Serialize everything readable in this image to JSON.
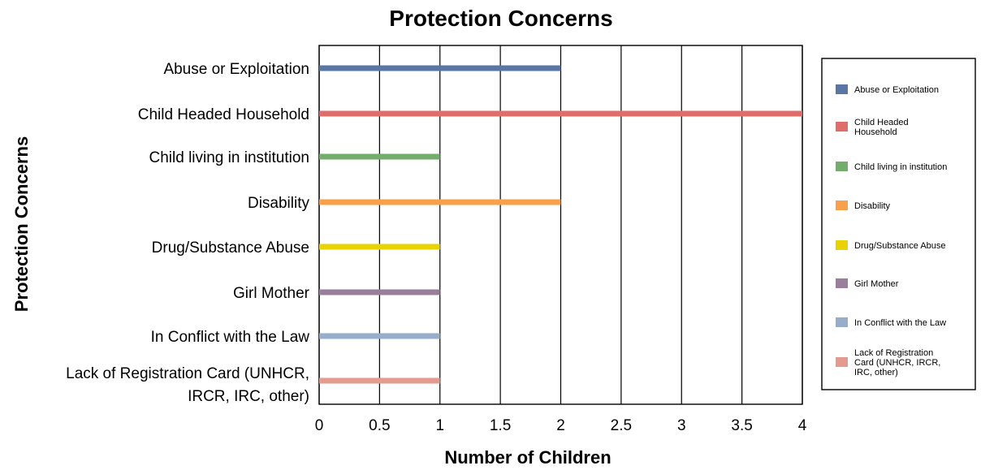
{
  "chart_data": {
    "type": "bar",
    "orientation": "horizontal",
    "title": "Protection Concerns",
    "xlabel": "Number of Children",
    "ylabel": "Protection Concerns",
    "categories": [
      "Abuse or Exploitation",
      "Child Headed Household",
      "Child living in institution",
      "Disability",
      "Drug/Substance Abuse",
      "Girl Mother",
      "In Conflict with the Law",
      "Lack of Registration Card (UNHCR, IRCR, IRC, other)"
    ],
    "category_label_lines": [
      [
        "Abuse or Exploitation"
      ],
      [
        "Child Headed Household"
      ],
      [
        "Child living in institution"
      ],
      [
        "Disability"
      ],
      [
        "Drug/Substance Abuse"
      ],
      [
        "Girl Mother"
      ],
      [
        "In Conflict with the Law"
      ],
      [
        "Lack of Registration Card (UNHCR,",
        "IRCR, IRC, other)"
      ]
    ],
    "values": [
      2,
      4,
      1,
      2,
      1,
      1,
      1,
      1
    ],
    "colors": [
      "#5a77a3",
      "#df6e6b",
      "#72ad6b",
      "#f8a04a",
      "#e8d300",
      "#9a7f9d",
      "#97aecb",
      "#e39a8f"
    ],
    "xlim": [
      0,
      4
    ],
    "ticks": [
      "0",
      "0.5",
      "1",
      "1.5",
      "2",
      "2.5",
      "3",
      "3.5",
      "4"
    ],
    "grid": true,
    "legend": {
      "position": "right",
      "entries": [
        [
          "Abuse or Exploitation"
        ],
        [
          "Child Headed",
          "Household"
        ],
        [
          "Child living in institution"
        ],
        [
          "Disability"
        ],
        [
          "Drug/Substance Abuse"
        ],
        [
          "Girl Mother"
        ],
        [
          "In Conflict with the Law"
        ],
        [
          "Lack of Registration",
          "Card (UNHCR, IRCR,",
          "IRC, other)"
        ]
      ]
    }
  }
}
